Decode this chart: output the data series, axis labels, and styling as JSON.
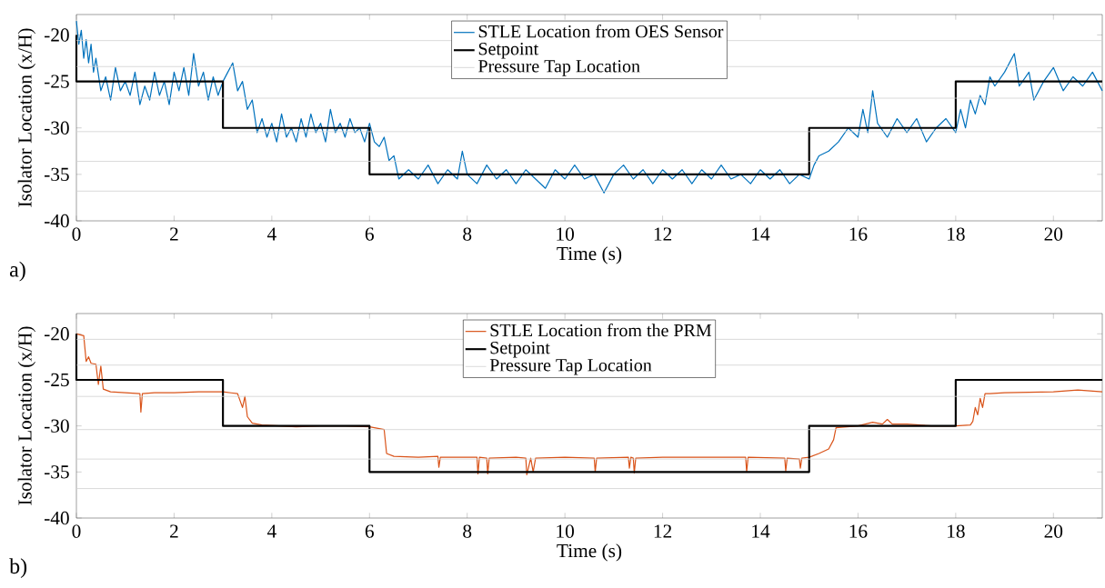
{
  "chart_data": [
    {
      "type": "line",
      "xlabel": "Time (s)",
      "ylabel": "Isolator Location (x/H)",
      "annotations": [
        "a)"
      ],
      "xlim": [
        0,
        21
      ],
      "ylim": [
        -40,
        -17.8
      ],
      "xticks": [
        0,
        2,
        4,
        6,
        8,
        10,
        12,
        14,
        16,
        18,
        20
      ],
      "yticks": [
        -40,
        -35,
        -30,
        -25,
        -20
      ],
      "legend": "top",
      "series": [
        {
          "name": "STLE Location from OES Sensor",
          "color": "#0072bd",
          "x": [
            0,
            0.05,
            0.1,
            0.15,
            0.2,
            0.25,
            0.3,
            0.35,
            0.4,
            0.5,
            0.6,
            0.7,
            0.8,
            0.9,
            1.0,
            1.1,
            1.2,
            1.3,
            1.4,
            1.5,
            1.6,
            1.7,
            1.8,
            1.9,
            2.0,
            2.1,
            2.2,
            2.3,
            2.4,
            2.5,
            2.6,
            2.7,
            2.8,
            2.9,
            3.0,
            3.1,
            3.2,
            3.3,
            3.4,
            3.5,
            3.6,
            3.7,
            3.8,
            3.9,
            4.0,
            4.1,
            4.2,
            4.3,
            4.4,
            4.5,
            4.6,
            4.7,
            4.8,
            4.9,
            5.0,
            5.1,
            5.2,
            5.3,
            5.4,
            5.5,
            5.6,
            5.7,
            5.8,
            5.9,
            6.0,
            6.1,
            6.2,
            6.3,
            6.4,
            6.5,
            6.6,
            6.8,
            7.0,
            7.2,
            7.4,
            7.6,
            7.8,
            7.9,
            8.0,
            8.2,
            8.4,
            8.6,
            8.8,
            9.0,
            9.2,
            9.4,
            9.6,
            9.8,
            10.0,
            10.2,
            10.4,
            10.6,
            10.8,
            11.0,
            11.2,
            11.4,
            11.6,
            11.8,
            12.0,
            12.2,
            12.4,
            12.6,
            12.8,
            13.0,
            13.2,
            13.4,
            13.6,
            13.8,
            14.0,
            14.2,
            14.4,
            14.6,
            14.8,
            15.0,
            15.1,
            15.2,
            15.4,
            15.6,
            15.8,
            16.0,
            16.1,
            16.2,
            16.3,
            16.4,
            16.6,
            16.8,
            17.0,
            17.2,
            17.4,
            17.6,
            17.8,
            18.0,
            18.1,
            18.2,
            18.3,
            18.4,
            18.5,
            18.6,
            18.7,
            18.8,
            19.0,
            19.2,
            19.3,
            19.5,
            19.6,
            19.8,
            20.0,
            20.2,
            20.4,
            20.6,
            20.8,
            21.0
          ],
          "values": [
            -18.5,
            -21,
            -19.5,
            -22.5,
            -20.5,
            -23,
            -21,
            -24,
            -22.5,
            -26,
            -24.5,
            -27,
            -23.5,
            -26,
            -25,
            -26.5,
            -24,
            -27.5,
            -25.5,
            -27,
            -24,
            -26.5,
            -25,
            -27.5,
            -24,
            -26,
            -23.5,
            -26.5,
            -22,
            -25.5,
            -24,
            -27,
            -24.5,
            -26.5,
            -25,
            -24,
            -23,
            -26,
            -25,
            -28,
            -27,
            -30.5,
            -29,
            -31,
            -29.5,
            -31.5,
            -28.5,
            -31,
            -30,
            -31.5,
            -29,
            -31,
            -28.5,
            -30.5,
            -29.5,
            -31.5,
            -28,
            -30.5,
            -29.5,
            -31,
            -29,
            -30.5,
            -30,
            -31.5,
            -29.5,
            -31.5,
            -32,
            -31,
            -33.5,
            -33,
            -35.5,
            -34.5,
            -35.5,
            -34,
            -36,
            -34.5,
            -35.5,
            -32.5,
            -35,
            -36,
            -34,
            -35.5,
            -34.5,
            -36,
            -34.5,
            -35.5,
            -36.5,
            -34.5,
            -35.5,
            -34,
            -35.5,
            -35,
            -37,
            -35,
            -34,
            -35.5,
            -34.5,
            -36,
            -34.5,
            -35.5,
            -34.5,
            -36,
            -34.5,
            -35.5,
            -34,
            -35.5,
            -35,
            -36,
            -34.5,
            -35.5,
            -34.5,
            -36,
            -35,
            -35.5,
            -34,
            -33,
            -32.5,
            -31.5,
            -30,
            -31,
            -28,
            -30.5,
            -26,
            -29.5,
            -31,
            -29,
            -30.5,
            -29,
            -31.5,
            -30,
            -29,
            -30.5,
            -28,
            -30,
            -27,
            -28.5,
            -26.5,
            -27.5,
            -24.5,
            -25.5,
            -24,
            -22,
            -25.5,
            -24,
            -27,
            -25,
            -23.5,
            -26,
            -24.5,
            -25.5,
            -24,
            -26
          ]
        },
        {
          "name": "Setpoint",
          "color": "#000000",
          "x": [
            0,
            0,
            3,
            3,
            6,
            6,
            15,
            15,
            18,
            18,
            21
          ],
          "values": [
            -20,
            -25,
            -25,
            -30,
            -30,
            -35,
            -35,
            -30,
            -30,
            -25,
            -25
          ]
        },
        {
          "name": "Pressure Tap Location",
          "color": "#d0d0d0",
          "x": [
            0,
            21
          ],
          "values": [
            -20.6,
            -20.6
          ]
        },
        {
          "color": "#d0d0d0",
          "x": [
            0,
            21
          ],
          "values": [
            -23.4,
            -23.4
          ]
        },
        {
          "color": "#d0d0d0",
          "x": [
            0,
            21
          ],
          "values": [
            -26.8,
            -26.8
          ]
        },
        {
          "color": "#d0d0d0",
          "x": [
            0,
            21
          ],
          "values": [
            -30.4,
            -30.4
          ]
        },
        {
          "color": "#d0d0d0",
          "x": [
            0,
            21
          ],
          "values": [
            -33.6,
            -33.6
          ]
        },
        {
          "color": "#d0d0d0",
          "x": [
            0,
            21
          ],
          "values": [
            -36.8,
            -36.8
          ]
        }
      ]
    },
    {
      "type": "line",
      "xlabel": "Time (s)",
      "ylabel": "Isolator Location (x/H)",
      "annotations": [
        "b)"
      ],
      "xlim": [
        0,
        21
      ],
      "ylim": [
        -40,
        -17.8
      ],
      "xticks": [
        0,
        2,
        4,
        6,
        8,
        10,
        12,
        14,
        16,
        18,
        20
      ],
      "yticks": [
        -40,
        -35,
        -30,
        -25,
        -20
      ],
      "legend": "top",
      "series": [
        {
          "name": "STLE Location from the PRM",
          "color": "#d95319",
          "x": [
            0,
            0.15,
            0.2,
            0.25,
            0.3,
            0.4,
            0.45,
            0.5,
            0.55,
            0.7,
            1.0,
            1.3,
            1.32,
            1.35,
            1.6,
            2.0,
            2.5,
            3.0,
            3.3,
            3.4,
            3.45,
            3.5,
            3.6,
            3.8,
            4.5,
            5.0,
            5.5,
            6.0,
            6.2,
            6.3,
            6.35,
            6.5,
            7.0,
            7.4,
            7.42,
            7.45,
            8.0,
            8.2,
            8.22,
            8.25,
            8.4,
            8.42,
            8.45,
            9.0,
            9.2,
            9.22,
            9.3,
            9.35,
            9.4,
            10.0,
            10.6,
            10.62,
            10.65,
            11.3,
            11.32,
            11.35,
            11.4,
            11.42,
            11.45,
            12.0,
            13.0,
            13.7,
            13.72,
            13.75,
            14.5,
            14.52,
            14.55,
            14.8,
            14.82,
            14.85,
            15.0,
            15.2,
            15.4,
            15.5,
            15.55,
            16.0,
            16.3,
            16.5,
            16.6,
            16.7,
            17.0,
            17.5,
            18.0,
            18.3,
            18.35,
            18.4,
            18.45,
            18.5,
            18.55,
            18.6,
            18.7,
            19.0,
            20.0,
            20.5,
            21.0
          ],
          "values": [
            -20,
            -20.2,
            -23,
            -22.5,
            -23.2,
            -23.3,
            -25.5,
            -23.5,
            -26,
            -26.3,
            -26.4,
            -26.5,
            -28.5,
            -26.5,
            -26.4,
            -26.4,
            -26.3,
            -26.3,
            -26.5,
            -28,
            -26.8,
            -29,
            -29.7,
            -29.9,
            -30.1,
            -30,
            -30,
            -30.1,
            -30.3,
            -30.4,
            -33,
            -33.3,
            -33.4,
            -33.3,
            -34.5,
            -33.4,
            -33.4,
            -33.4,
            -35.2,
            -33.4,
            -33.5,
            -35.2,
            -33.5,
            -33.4,
            -33.5,
            -35.3,
            -33.5,
            -35,
            -33.5,
            -33.4,
            -33.5,
            -35,
            -33.5,
            -33.4,
            -34.6,
            -33.4,
            -33.5,
            -35.1,
            -33.5,
            -33.4,
            -33.4,
            -33.4,
            -35,
            -33.4,
            -33.5,
            -34.9,
            -33.5,
            -33.6,
            -34.6,
            -33.5,
            -33.4,
            -33,
            -32.5,
            -31.5,
            -30.2,
            -30,
            -29.6,
            -29.8,
            -29.3,
            -29.8,
            -29.8,
            -30,
            -30,
            -29.9,
            -29.5,
            -28,
            -28.8,
            -27,
            -28,
            -26.5,
            -26.5,
            -26.4,
            -26.3,
            -26.1,
            -26.3
          ]
        },
        {
          "name": "Setpoint",
          "color": "#000000",
          "x": [
            0,
            0,
            3,
            3,
            6,
            6,
            15,
            15,
            18,
            18,
            21
          ],
          "values": [
            -20,
            -25,
            -25,
            -30,
            -30,
            -35,
            -35,
            -30,
            -30,
            -25,
            -25
          ]
        },
        {
          "name": "Pressure Tap Location",
          "color": "#d0d0d0",
          "x": [
            0,
            21
          ],
          "values": [
            -20.6,
            -20.6
          ]
        },
        {
          "color": "#d0d0d0",
          "x": [
            0,
            21
          ],
          "values": [
            -23.4,
            -23.4
          ]
        },
        {
          "color": "#d0d0d0",
          "x": [
            0,
            21
          ],
          "values": [
            -26.8,
            -26.8
          ]
        },
        {
          "color": "#d0d0d0",
          "x": [
            0,
            21
          ],
          "values": [
            -30.4,
            -30.4
          ]
        },
        {
          "color": "#d0d0d0",
          "x": [
            0,
            21
          ],
          "values": [
            -33.6,
            -33.6
          ]
        },
        {
          "color": "#d0d0d0",
          "x": [
            0,
            21
          ],
          "values": [
            -36.8,
            -36.8
          ]
        }
      ]
    }
  ]
}
